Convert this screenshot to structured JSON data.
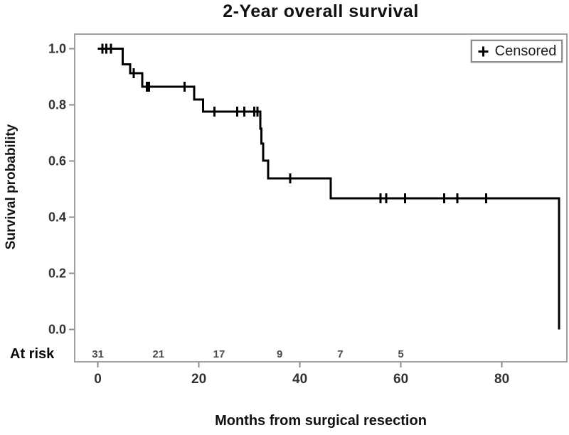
{
  "page_background": "#ffffff",
  "chart_data": {
    "type": "line",
    "subtype": "kaplan-meier-step",
    "title": "2-Year overall survival",
    "xlabel": "Months from surgical resection",
    "ylabel": "Survival probability",
    "grid": false,
    "xlim": [
      -4.6,
      92.9
    ],
    "ylim": [
      -0.12,
      1.05
    ],
    "x_ticks": [
      0,
      20,
      40,
      60,
      80
    ],
    "y_ticks": [
      "0.0",
      "0.2",
      "0.4",
      "0.6",
      "0.8",
      "1.0"
    ],
    "steps": [
      [
        0,
        1.0
      ],
      [
        4.9,
        0.944
      ],
      [
        6.4,
        0.912
      ],
      [
        8.8,
        0.864
      ],
      [
        19.1,
        0.818
      ],
      [
        20.8,
        0.775
      ],
      [
        32.2,
        0.715
      ],
      [
        32.4,
        0.662
      ],
      [
        32.7,
        0.601
      ],
      [
        33.7,
        0.538
      ],
      [
        46.1,
        0.467
      ],
      [
        91.3,
        0.0
      ]
    ],
    "censored": [
      [
        0.9,
        1.0
      ],
      [
        1.7,
        1.0
      ],
      [
        2.6,
        1.0
      ],
      [
        7.1,
        0.912
      ],
      [
        9.7,
        0.864
      ],
      [
        10.1,
        0.864
      ],
      [
        17.2,
        0.864
      ],
      [
        23.1,
        0.775
      ],
      [
        27.6,
        0.775
      ],
      [
        29.0,
        0.775
      ],
      [
        31.0,
        0.775
      ],
      [
        31.6,
        0.775
      ],
      [
        38.1,
        0.538
      ],
      [
        56.0,
        0.467
      ],
      [
        57.1,
        0.467
      ],
      [
        60.8,
        0.467
      ],
      [
        68.6,
        0.467
      ],
      [
        71.2,
        0.467
      ],
      [
        76.9,
        0.467
      ]
    ],
    "at_risk": {
      "label": "At risk",
      "months": [
        0,
        12,
        24,
        36,
        48,
        60
      ],
      "counts": [
        31,
        21,
        17,
        9,
        7,
        5
      ]
    },
    "legend": {
      "symbol": "+",
      "label": "Censored",
      "position": "top-right"
    },
    "colors": {
      "curve": "#000000",
      "censor_mark": "#000000",
      "plot_border": "#a0a0a0",
      "tick_line": "#8f8f8f",
      "tick_label": "#333333",
      "at_risk_count": "#4d4d4d",
      "title_text": "#111111",
      "legend_border": "#8f8f8f"
    }
  }
}
